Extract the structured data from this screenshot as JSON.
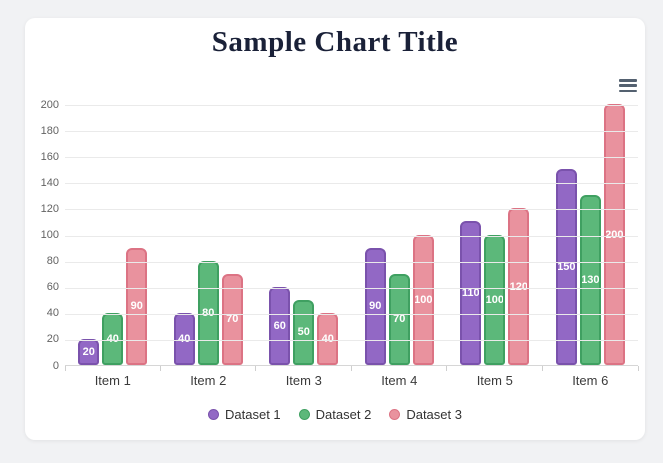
{
  "chart": {
    "title": "Sample Chart Title",
    "menu_icon": "hamburger"
  },
  "chart_data": {
    "type": "bar",
    "title": "Sample Chart Title",
    "categories": [
      "Item 1",
      "Item 2",
      "Item 3",
      "Item 4",
      "Item 5",
      "Item 6"
    ],
    "series": [
      {
        "name": "Dataset 1",
        "color": "#9268c5",
        "border_color": "#7a52ac",
        "values": [
          20,
          40,
          60,
          90,
          110,
          150
        ]
      },
      {
        "name": "Dataset 2",
        "color": "#5cb87a",
        "border_color": "#3fa061",
        "values": [
          40,
          80,
          50,
          70,
          100,
          130
        ]
      },
      {
        "name": "Dataset 3",
        "color": "#e9929e",
        "border_color": "#dc7384",
        "values": [
          90,
          70,
          40,
          100,
          120,
          200
        ]
      }
    ],
    "xlabel": "",
    "ylabel": "",
    "ylim": [
      0,
      200
    ],
    "ytick_step": 20,
    "grid": true,
    "legend_position": "bottom",
    "value_labels": "inside-center",
    "value_label_color": "#ffffff",
    "grid_color": "#eaeaea",
    "axis_tick_color": "#636363",
    "background_color": "#ffffff",
    "page_background_color": "#f1f2f4",
    "title_color": "#1a2138"
  }
}
